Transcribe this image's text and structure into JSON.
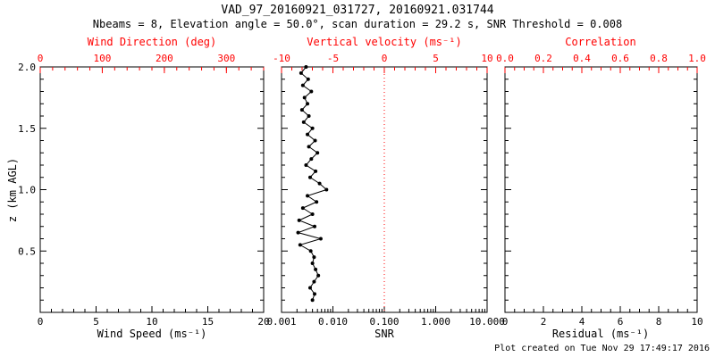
{
  "title": "VAD_97_20160921_031727, 20160921.031744",
  "subtitle": "Nbeams = 8, Elevation angle = 50.0°, scan duration = 29.2 s, SNR Threshold = 0.008",
  "footer": "Plot created on Tue Nov 29 17:49:17 2016",
  "colors": {
    "primary": "#000000",
    "secondary": "#ff0000",
    "background": "#ffffff"
  },
  "chart_data": [
    {
      "type": "scatter",
      "name": "wind-speed-and-direction-panel",
      "xlabel": "Wind Speed (ms⁻¹)",
      "x_range": [
        0,
        20
      ],
      "x_ticks": [
        0,
        5,
        10,
        15,
        20
      ],
      "x_tick_labels": [
        "0",
        "5",
        "10",
        "15",
        "20"
      ],
      "x_minor": 1,
      "top_label": "Wind Direction (deg)",
      "top_range": [
        0,
        360
      ],
      "top_ticks": [
        0,
        100,
        200,
        300
      ],
      "top_tick_labels": [
        "0",
        "100",
        "200",
        "300"
      ],
      "top_minor": 20,
      "ylabel": "z (km AGL)",
      "y_range": [
        0,
        2
      ],
      "y_ticks": [
        0.5,
        1.0,
        1.5,
        2.0
      ],
      "y_tick_labels": [
        "0.5",
        "1.0",
        "1.5",
        "2.0"
      ],
      "y_minor": 0.1,
      "grid": false,
      "points": []
    },
    {
      "type": "line",
      "name": "snr-profile-panel",
      "xlabel": "SNR",
      "x_scale": "log",
      "x_range": [
        0.001,
        10
      ],
      "x_ticks": [
        0.001,
        0.01,
        0.1,
        1,
        10
      ],
      "x_tick_labels": [
        "0.001",
        "0.010",
        "0.100",
        "1.000",
        "10.000"
      ],
      "top_label": "Vertical velocity (ms⁻¹)",
      "top_range": [
        -10,
        10
      ],
      "top_ticks": [
        -10,
        -5,
        0,
        5,
        10
      ],
      "top_tick_labels": [
        "-10",
        "-5",
        "0",
        "5",
        "10"
      ],
      "top_minor": 1,
      "y_range": [
        0,
        2
      ],
      "y_minor": 0.1,
      "grid": false,
      "reference_line": {
        "snr": 0.1,
        "vertical_velocity": 0,
        "color": "#ff0000",
        "style": "dotted"
      },
      "points_format": "[SNR, z_km_AGL]",
      "points": [
        [
          0.003,
          2.0
        ],
        [
          0.0024,
          1.95
        ],
        [
          0.0033,
          1.9
        ],
        [
          0.0026,
          1.85
        ],
        [
          0.0038,
          1.8
        ],
        [
          0.0028,
          1.75
        ],
        [
          0.0032,
          1.7
        ],
        [
          0.0025,
          1.65
        ],
        [
          0.0034,
          1.6
        ],
        [
          0.0027,
          1.55
        ],
        [
          0.004,
          1.5
        ],
        [
          0.0032,
          1.45
        ],
        [
          0.0045,
          1.4
        ],
        [
          0.0034,
          1.35
        ],
        [
          0.005,
          1.3
        ],
        [
          0.0038,
          1.25
        ],
        [
          0.003,
          1.2
        ],
        [
          0.0046,
          1.15
        ],
        [
          0.0036,
          1.1
        ],
        [
          0.0055,
          1.05
        ],
        [
          0.0075,
          1.0
        ],
        [
          0.0032,
          0.95
        ],
        [
          0.0048,
          0.9
        ],
        [
          0.0026,
          0.85
        ],
        [
          0.004,
          0.8
        ],
        [
          0.0022,
          0.75
        ],
        [
          0.0044,
          0.7
        ],
        [
          0.0021,
          0.65
        ],
        [
          0.0058,
          0.6
        ],
        [
          0.0023,
          0.55
        ],
        [
          0.0037,
          0.5
        ],
        [
          0.0043,
          0.45
        ],
        [
          0.004,
          0.4
        ],
        [
          0.0046,
          0.35
        ],
        [
          0.0052,
          0.3
        ],
        [
          0.0043,
          0.25
        ],
        [
          0.0036,
          0.2
        ],
        [
          0.0044,
          0.15
        ],
        [
          0.004,
          0.1
        ]
      ]
    },
    {
      "type": "scatter",
      "name": "residual-and-correlation-panel",
      "xlabel": "Residual (ms⁻¹)",
      "x_range": [
        0,
        10
      ],
      "x_ticks": [
        0,
        2,
        4,
        6,
        8,
        10
      ],
      "x_tick_labels": [
        "0",
        "2",
        "4",
        "6",
        "8",
        "10"
      ],
      "x_minor": 0.5,
      "top_label": "Correlation",
      "top_range": [
        0,
        1
      ],
      "top_ticks": [
        0,
        0.2,
        0.4,
        0.6,
        0.8,
        1
      ],
      "top_tick_labels": [
        "0.0",
        "0.2",
        "0.4",
        "0.6",
        "0.8",
        "1.0"
      ],
      "top_minor": 0.05,
      "y_range": [
        0,
        2
      ],
      "y_minor": 0.1,
      "grid": false,
      "points": []
    }
  ]
}
